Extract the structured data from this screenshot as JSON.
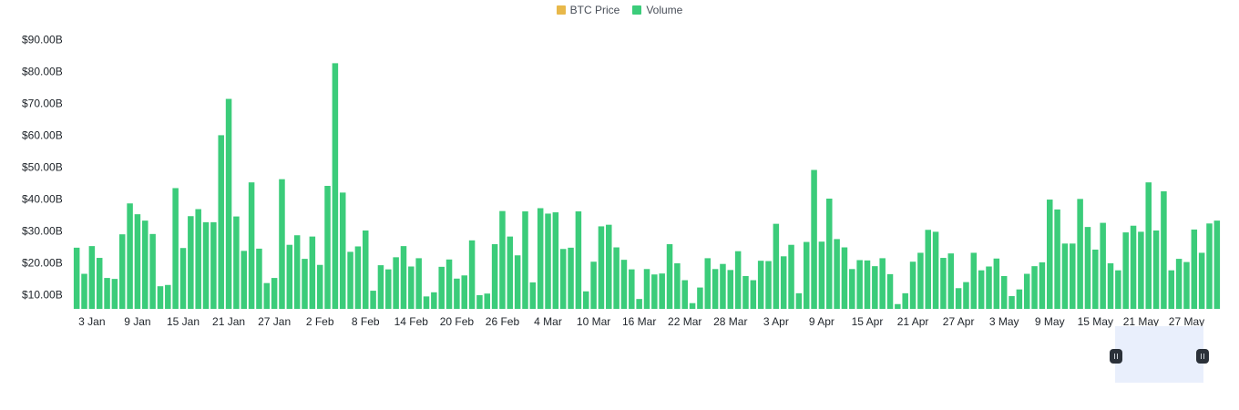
{
  "legend": {
    "price_label": "BTC Price",
    "volume_label": "Volume"
  },
  "colors": {
    "price": "#e8b84a",
    "volume": "#3bcc7a",
    "zoom_window": "#e9effc",
    "handle": "#2b3139"
  },
  "chart_data": {
    "type": "bar",
    "series": [
      {
        "name": "Volume",
        "values": [
          24.7,
          16.5,
          25.2,
          21.5,
          15.2,
          14.9,
          28.9,
          38.6,
          35.2,
          33.2,
          29.0,
          12.6,
          13.0,
          43.4,
          24.6,
          34.6,
          36.8,
          32.7,
          32.7,
          60.0,
          71.4,
          34.5,
          23.7,
          45.2,
          24.4,
          13.6,
          15.2,
          46.2,
          25.6,
          28.6,
          21.2,
          28.2,
          19.3,
          44.1,
          82.6,
          42.0,
          23.4,
          25.1,
          30.1,
          11.2,
          19.2,
          17.9,
          21.7,
          25.2,
          18.8,
          21.4,
          9.4,
          10.7,
          18.7,
          21.0,
          15.0,
          16.0,
          27.0,
          9.8,
          10.3,
          25.8,
          36.2,
          28.2,
          22.3,
          36.1,
          13.8,
          37.1,
          35.4,
          35.8,
          24.3,
          24.7,
          36.1,
          11.0,
          20.3,
          31.4,
          31.9,
          24.8,
          20.9,
          17.9,
          8.6,
          18.0,
          16.3,
          16.6,
          25.8,
          19.8,
          14.5,
          7.3,
          12.2,
          21.4,
          18.0,
          19.6,
          17.7,
          23.6,
          15.8,
          14.5,
          20.6,
          20.5,
          32.2,
          22.0,
          25.6,
          10.4,
          26.5,
          49.1,
          26.6,
          40.1,
          27.4,
          24.8,
          18.0,
          20.8,
          20.7,
          18.9,
          21.4,
          16.4,
          7.0,
          10.4,
          20.3,
          23.1,
          30.3,
          29.7,
          21.5,
          22.9,
          12.0,
          13.9,
          23.1,
          17.6,
          18.8,
          21.3,
          15.8,
          9.5,
          11.6,
          16.5,
          18.9,
          20.1,
          39.8,
          36.7,
          26.0,
          26.0,
          40.0,
          31.2,
          24.1,
          32.5,
          19.8,
          17.6,
          29.5,
          31.6,
          29.7,
          45.2,
          30.1,
          42.4,
          17.6,
          21.2,
          20.2,
          30.4,
          23.1,
          32.3,
          33.2
        ]
      }
    ],
    "x_tick_labels": [
      "3 Jan",
      "9 Jan",
      "15 Jan",
      "21 Jan",
      "27 Jan",
      "2 Feb",
      "8 Feb",
      "14 Feb",
      "20 Feb",
      "26 Feb",
      "4 Mar",
      "10 Mar",
      "16 Mar",
      "22 Mar",
      "28 Mar",
      "3 Apr",
      "9 Apr",
      "15 Apr",
      "21 Apr",
      "27 Apr",
      "3 May",
      "9 May",
      "15 May",
      "21 May",
      "27 May"
    ],
    "y_tick_labels": [
      "$10.00B",
      "$20.00B",
      "$30.00B",
      "$40.00B",
      "$50.00B",
      "$60.00B",
      "$70.00B",
      "$80.00B",
      "$90.00B"
    ],
    "y_tick_values": [
      10,
      20,
      30,
      40,
      50,
      60,
      70,
      80,
      90
    ],
    "ylabel": "",
    "xlabel": "",
    "y_unit": "B USD",
    "ylim": [
      5.5,
      91
    ],
    "grid": false,
    "legend_position": "top-center"
  }
}
